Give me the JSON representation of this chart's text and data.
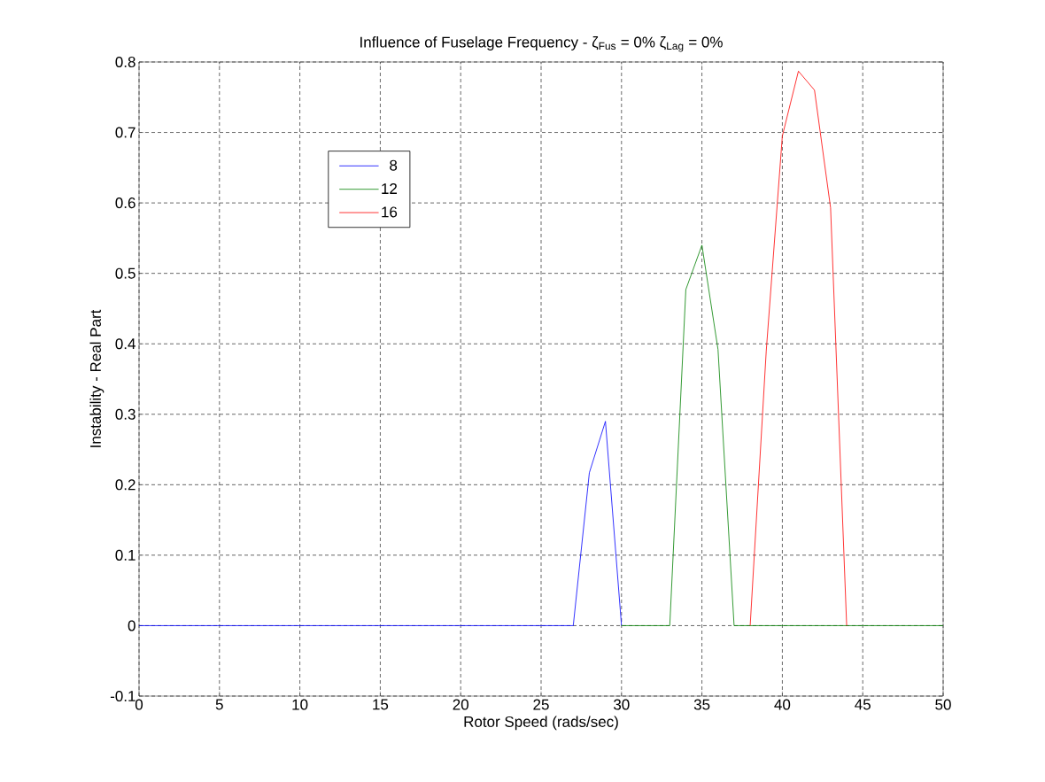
{
  "chart_data": {
    "type": "line",
    "title": "Influence of Fuselage Frequency - ζ$_{Fus}$ = 0% ζ$_{Lag}$ = 0%",
    "xlabel": "Rotor Speed (rads/sec)",
    "ylabel": "Instability - Real Part",
    "series": [
      {
        "name": "8",
        "color": "#0000ff",
        "x": [
          0,
          27,
          28,
          29,
          30
        ],
        "values": [
          0,
          0,
          0.217,
          0.29,
          0
        ]
      },
      {
        "name": "12",
        "color": "#008000",
        "x": [
          30,
          33,
          34,
          35,
          36,
          37,
          50
        ],
        "values": [
          0,
          0,
          0.477,
          0.54,
          0.392,
          0,
          0
        ]
      },
      {
        "name": "16",
        "color": "#ff0000",
        "x": [
          38,
          39,
          40,
          41,
          42,
          43,
          44
        ],
        "values": [
          0,
          0.39,
          0.695,
          0.787,
          0.76,
          0.593,
          0
        ]
      }
    ],
    "xlim": [
      0,
      50
    ],
    "ylim": [
      -0.1,
      0.8
    ],
    "xticks": [
      0,
      5,
      10,
      15,
      20,
      25,
      30,
      35,
      40,
      45,
      50
    ],
    "yticks": [
      -0.1,
      0,
      0.1,
      0.2,
      0.3,
      0.4,
      0.5,
      0.6,
      0.7,
      0.8
    ],
    "grid": true,
    "legend": "top left",
    "marker": "none",
    "line_style": "solid"
  }
}
